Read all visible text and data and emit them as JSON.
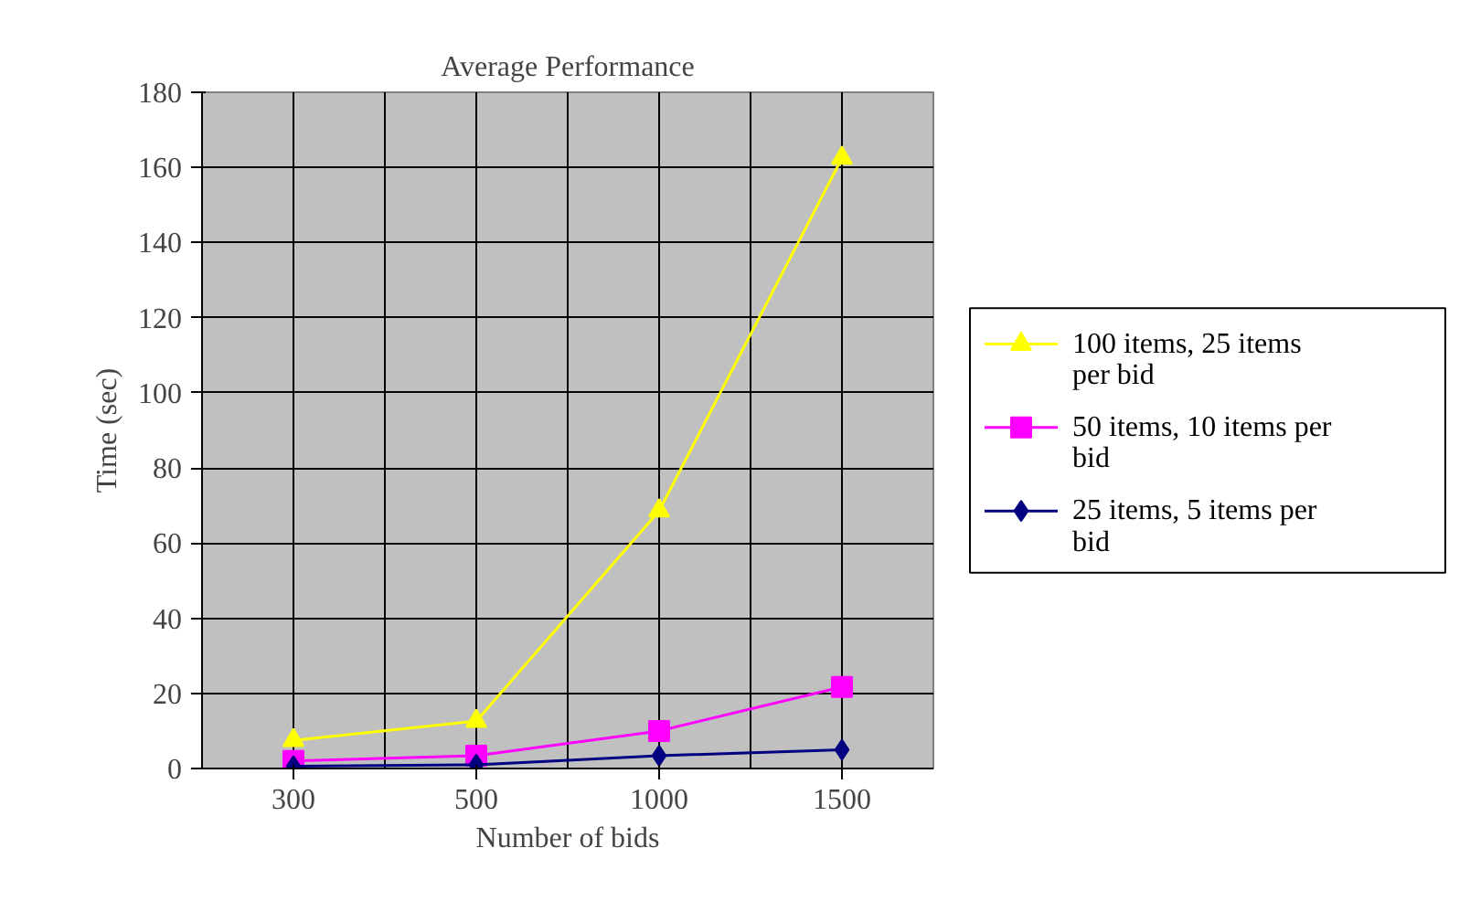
{
  "chart_data": {
    "type": "line",
    "title": "Average Performance",
    "xlabel": "Number of bids",
    "ylabel": "Time (sec)",
    "categories": [
      "300",
      "500",
      "1000",
      "1500"
    ],
    "series": [
      {
        "name": "100 items, 25 items per bid",
        "color": "#ffff00",
        "marker": "triangle",
        "values": [
          7.5,
          12.6,
          68.6,
          162.5
        ]
      },
      {
        "name": "50 items, 10 items per bid",
        "color": "#ff00ff",
        "marker": "square",
        "values": [
          2,
          3.4,
          10,
          21.7
        ]
      },
      {
        "name": "25 items, 5 items per bid",
        "color": "#000080",
        "marker": "diamond",
        "values": [
          0.6,
          1,
          3.4,
          5
        ]
      }
    ],
    "ylim": [
      0,
      180
    ],
    "yticks": [
      0,
      20,
      40,
      60,
      80,
      100,
      120,
      140,
      160,
      180
    ],
    "grid": true,
    "legend": "right",
    "line_style": "solid"
  }
}
